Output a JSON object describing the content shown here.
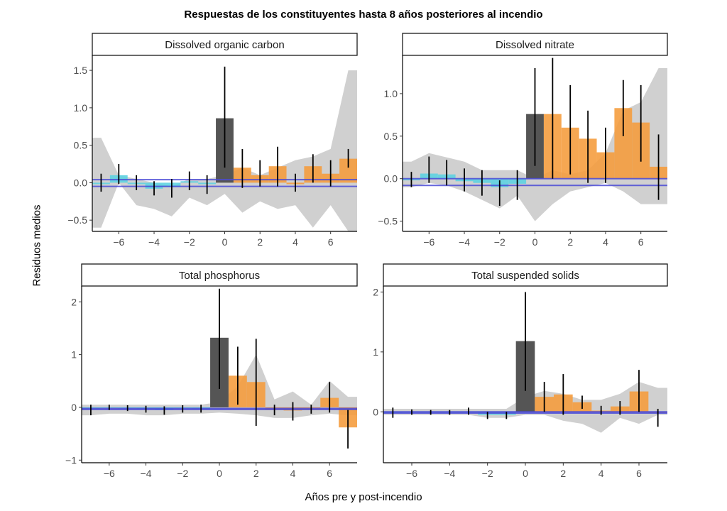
{
  "title": "Respuestas de los constituyentes hasta 8 años posteriores al incendio",
  "ylabel": "Residuos medios",
  "xlabel": "Años pre y post-incendio",
  "colors": {
    "pre_fire": "#5bd1e0",
    "fire_year": "#555555",
    "post_fire": "#f59b3a",
    "ribbon": "#c8c8c8",
    "zero_line": "#4a4ad6",
    "errorbar": "#000000"
  },
  "chart_data": [
    {
      "type": "bar",
      "panel": "Dissolved organic carbon",
      "x": [
        -7,
        -6,
        -5,
        -4,
        -3,
        -2,
        -1,
        0,
        1,
        2,
        3,
        4,
        5,
        6,
        7
      ],
      "values": [
        -0.02,
        0.1,
        -0.02,
        -0.08,
        -0.06,
        0.02,
        -0.02,
        0.86,
        0.2,
        0.1,
        0.22,
        -0.02,
        0.22,
        0.12,
        0.32
      ],
      "err_low": [
        -0.12,
        -0.02,
        -0.1,
        -0.17,
        -0.2,
        -0.1,
        -0.15,
        0.2,
        -0.07,
        -0.05,
        -0.05,
        -0.12,
        0.0,
        -0.05,
        0.2
      ],
      "err_high": [
        0.12,
        0.25,
        0.1,
        0.02,
        0.05,
        0.15,
        0.1,
        1.55,
        0.45,
        0.3,
        0.48,
        0.12,
        0.38,
        0.3,
        0.45
      ],
      "ribbon_low": [
        -0.6,
        0.0,
        -0.3,
        -0.35,
        -0.45,
        -0.2,
        -0.3,
        -0.15,
        -0.4,
        -0.25,
        -0.35,
        -0.3,
        -0.6,
        -0.3,
        -0.65
      ],
      "ribbon_high": [
        0.6,
        0.1,
        0.05,
        0.0,
        -0.05,
        0.05,
        0.05,
        0.1,
        0.2,
        0.1,
        0.2,
        0.3,
        0.35,
        0.45,
        1.5
      ],
      "xlim": [
        -7.5,
        7.5
      ],
      "ylim": [
        -0.65,
        1.7
      ],
      "xticks": [
        -6,
        -4,
        -2,
        0,
        2,
        4,
        6
      ],
      "yticks": [
        -0.5,
        0.0,
        0.5,
        1.0,
        1.5
      ],
      "ytick_labels": [
        "−0.5",
        "0.0",
        "0.5",
        "1.0",
        "1.5"
      ],
      "zero_lines": [
        0.04,
        -0.05
      ]
    },
    {
      "type": "bar",
      "panel": "Dissolved nitrate",
      "x": [
        -7,
        -6,
        -5,
        -4,
        -3,
        -2,
        -1,
        0,
        1,
        2,
        3,
        4,
        5,
        6,
        7
      ],
      "values": [
        -0.02,
        0.06,
        0.05,
        -0.03,
        -0.05,
        -0.1,
        -0.06,
        0.76,
        0.76,
        0.6,
        0.47,
        0.31,
        0.83,
        0.66,
        0.14
      ],
      "err_low": [
        -0.1,
        -0.05,
        -0.08,
        -0.15,
        -0.2,
        -0.32,
        -0.25,
        0.15,
        0.0,
        0.05,
        -0.05,
        -0.05,
        0.5,
        0.2,
        -0.25
      ],
      "err_high": [
        0.08,
        0.26,
        0.22,
        0.12,
        0.1,
        -0.02,
        0.1,
        1.3,
        1.42,
        1.1,
        0.8,
        0.6,
        1.16,
        1.1,
        0.52
      ],
      "ribbon_low": [
        -0.1,
        -0.05,
        -0.08,
        -0.15,
        -0.25,
        -0.35,
        -0.2,
        -0.5,
        -0.3,
        -0.15,
        -0.1,
        -0.05,
        -0.15,
        -0.3,
        -0.3
      ],
      "ribbon_high": [
        0.2,
        0.3,
        0.25,
        0.2,
        0.1,
        0.1,
        0.1,
        0.0,
        0.1,
        0.05,
        0.1,
        0.3,
        0.8,
        0.9,
        1.3
      ],
      "xlim": [
        -7.5,
        7.5
      ],
      "ylim": [
        -0.62,
        1.45
      ],
      "xticks": [
        -6,
        -4,
        -2,
        0,
        2,
        4,
        6
      ],
      "yticks": [
        -0.5,
        0.0,
        0.5,
        1.0
      ],
      "ytick_labels": [
        "−0.5",
        "0.0",
        "0.5",
        "1.0"
      ],
      "zero_lines": [
        0.0,
        -0.08
      ]
    },
    {
      "type": "bar",
      "panel": "Total phosphorus",
      "x": [
        -7,
        -6,
        -5,
        -4,
        -3,
        -2,
        -1,
        0,
        1,
        2,
        3,
        4,
        5,
        6,
        7
      ],
      "values": [
        -0.03,
        0.0,
        -0.02,
        -0.03,
        -0.05,
        -0.02,
        -0.03,
        1.32,
        0.6,
        0.48,
        -0.05,
        -0.06,
        -0.05,
        0.18,
        -0.38
      ],
      "err_low": [
        -0.15,
        -0.05,
        -0.07,
        -0.1,
        -0.14,
        -0.1,
        -0.1,
        0.35,
        0.05,
        -0.35,
        -0.15,
        -0.25,
        -0.12,
        -0.1,
        -0.78
      ],
      "err_high": [
        0.05,
        0.05,
        0.04,
        0.03,
        0.02,
        0.04,
        0.05,
        2.25,
        1.15,
        1.3,
        0.05,
        0.1,
        0.05,
        0.48,
        -0.05
      ],
      "ribbon_low": [
        -0.15,
        -0.12,
        -0.12,
        -0.15,
        -0.15,
        -0.12,
        -0.12,
        -0.1,
        -0.12,
        -0.15,
        -0.2,
        -0.2,
        -0.15,
        -0.12,
        -0.15
      ],
      "ribbon_high": [
        0.05,
        0.05,
        0.05,
        0.05,
        0.05,
        0.05,
        0.05,
        0.1,
        0.4,
        1.0,
        0.15,
        0.3,
        0.05,
        0.5,
        0.2
      ],
      "xlim": [
        -7.5,
        7.5
      ],
      "ylim": [
        -1.05,
        2.3
      ],
      "xticks": [
        -6,
        -4,
        -2,
        0,
        2,
        4,
        6
      ],
      "yticks": [
        -1,
        0,
        1,
        2
      ],
      "ytick_labels": [
        "−1",
        "0",
        "1",
        "2"
      ],
      "zero_lines": [
        -0.02,
        -0.04
      ]
    },
    {
      "type": "bar",
      "panel": "Total suspended solids",
      "x": [
        -7,
        -6,
        -5,
        -4,
        -3,
        -2,
        -1,
        0,
        1,
        2,
        3,
        4,
        5,
        6,
        7
      ],
      "values": [
        -0.02,
        -0.01,
        -0.01,
        -0.01,
        0.0,
        -0.05,
        -0.05,
        1.18,
        0.25,
        0.29,
        0.16,
        0.02,
        0.09,
        0.34,
        -0.02
      ],
      "err_low": [
        -0.1,
        -0.05,
        -0.05,
        -0.05,
        -0.05,
        -0.12,
        -0.12,
        0.35,
        0.0,
        -0.05,
        0.05,
        -0.05,
        -0.05,
        0.0,
        -0.25
      ],
      "err_high": [
        0.07,
        0.04,
        0.03,
        0.03,
        0.07,
        0.0,
        0.0,
        2.0,
        0.5,
        0.63,
        0.27,
        0.1,
        0.18,
        0.7,
        0.05
      ],
      "ribbon_low": [
        -0.05,
        -0.05,
        -0.05,
        -0.05,
        -0.05,
        -0.1,
        -0.1,
        -0.05,
        -0.05,
        -0.15,
        -0.2,
        -0.35,
        -0.1,
        -0.2,
        -0.05
      ],
      "ribbon_high": [
        0.05,
        0.05,
        0.05,
        0.05,
        0.05,
        0.05,
        0.05,
        0.25,
        0.35,
        0.3,
        0.2,
        0.2,
        0.3,
        0.5,
        0.4
      ],
      "xlim": [
        -7.5,
        7.5
      ],
      "ylim": [
        -0.85,
        2.1
      ],
      "xticks": [
        -6,
        -4,
        -2,
        0,
        2,
        4,
        6
      ],
      "yticks": [
        0,
        1,
        2
      ],
      "ytick_labels": [
        "0",
        "1",
        "2"
      ],
      "zero_lines": [
        0.0,
        -0.02
      ]
    }
  ]
}
